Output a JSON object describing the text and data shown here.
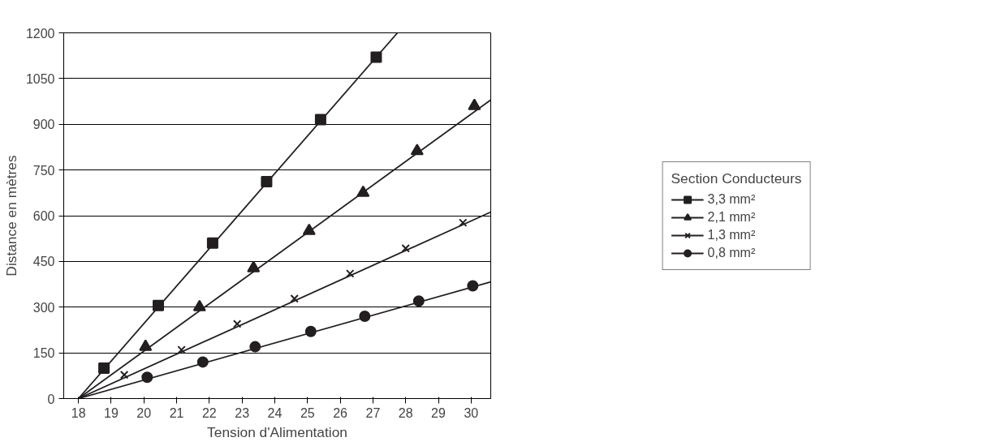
{
  "chart_data": {
    "type": "scatter",
    "xlabel": "Tension d'Alimentation",
    "ylabel": "Distance en mètres",
    "legend_title": "Section Conducteurs",
    "legend": "right",
    "grid": "y",
    "xlim": [
      17.55,
      30.6
    ],
    "ylim": [
      0,
      1200
    ],
    "xticks": [
      18,
      19,
      20,
      21,
      22,
      23,
      24,
      25,
      26,
      27,
      28,
      29,
      30
    ],
    "yticks": [
      0,
      150,
      300,
      450,
      600,
      750,
      900,
      1050,
      1200
    ],
    "series": [
      {
        "name": "3,3 mm²",
        "color": "#231f20",
        "marker": "square",
        "x": [
          18.78,
          20.44,
          22.1,
          23.75,
          25.4,
          27.1
        ],
        "values": [
          100,
          305,
          510,
          712,
          915,
          1120
        ]
      },
      {
        "name": "2,1 mm²",
        "color": "#231f20",
        "marker": "triangle",
        "x": [
          20.05,
          21.7,
          23.35,
          25.05,
          26.7,
          28.35,
          30.1
        ],
        "values": [
          170,
          300,
          428,
          550,
          675,
          812,
          960
        ]
      },
      {
        "name": "1,3 mm²",
        "color": "#231f20",
        "marker": "cross",
        "x": [
          19.4,
          21.15,
          22.85,
          24.6,
          26.3,
          28.0,
          29.75
        ],
        "values": [
          78,
          160,
          245,
          328,
          410,
          493,
          577
        ]
      },
      {
        "name": "0,8 mm²",
        "color": "#231f20",
        "marker": "circle",
        "x": [
          20.1,
          21.8,
          23.4,
          25.1,
          26.75,
          28.4,
          30.05
        ],
        "values": [
          70,
          120,
          170,
          220,
          270,
          320,
          370
        ]
      },
      {
        "type": "line",
        "color": "#231f20",
        "marker": "none",
        "x": [
          18,
          27.75
        ],
        "values": [
          0,
          1200
        ]
      },
      {
        "type": "line",
        "color": "#231f20",
        "marker": "none",
        "x": [
          18,
          30.6
        ],
        "values": [
          0,
          980
        ]
      },
      {
        "type": "line",
        "color": "#231f20",
        "marker": "none",
        "x": [
          18,
          30.6
        ],
        "values": [
          0,
          612
        ]
      },
      {
        "type": "line",
        "color": "#231f20",
        "marker": "none",
        "x": [
          18,
          30.6
        ],
        "values": [
          0,
          383
        ]
      }
    ]
  }
}
